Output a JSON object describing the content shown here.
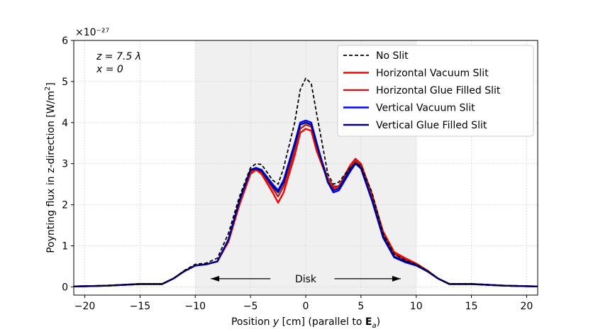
{
  "chart_data": {
    "type": "line",
    "title": "",
    "xlabel": "Position y [cm] (parallel to E_a)",
    "xlabel_parts": [
      "Position ",
      "y",
      " [cm] (parallel to ",
      "E",
      "a",
      ")"
    ],
    "ylabel": "Poynting flux in z-direction [W/m2]",
    "ylabel_parts": [
      "Poynting flux in z-direction [W/m",
      "2",
      "]"
    ],
    "xlim": [
      -21,
      21
    ],
    "ylim": [
      -0.2,
      6
    ],
    "xticks": [
      -20,
      -15,
      -10,
      -5,
      0,
      5,
      10,
      15,
      20
    ],
    "yticks": [
      0,
      1,
      2,
      3,
      4,
      5,
      6
    ],
    "ytick_scale": "×10⁻²⁷",
    "grid": true,
    "shaded_region": {
      "x0": -10,
      "x1": 10,
      "label": "Disk"
    },
    "annotations": [
      "z = 7.5 λ",
      "x = 0"
    ],
    "legend_position": "top-right",
    "series": [
      {
        "name": "No Slit",
        "color": "#000000",
        "style": "dashed",
        "x": [
          -21,
          -18,
          -15,
          -13,
          -12,
          -11,
          -10,
          -9,
          -8,
          -7,
          -6,
          -5,
          -4.5,
          -4,
          -3,
          -2.5,
          -2,
          -1,
          -0.5,
          0,
          0.5,
          1,
          2,
          2.5,
          3,
          4,
          4.5,
          5,
          6,
          7,
          8,
          9,
          10,
          11,
          12,
          13,
          15,
          18,
          21
        ],
        "y": [
          0.01,
          0.03,
          0.07,
          0.07,
          0.2,
          0.4,
          0.55,
          0.58,
          0.7,
          1.3,
          2.2,
          2.9,
          3.0,
          2.98,
          2.6,
          2.5,
          2.9,
          4.0,
          4.8,
          5.08,
          4.95,
          4.2,
          2.75,
          2.5,
          2.55,
          2.9,
          3.0,
          2.95,
          2.3,
          1.3,
          0.8,
          0.65,
          0.55,
          0.4,
          0.2,
          0.07,
          0.07,
          0.03,
          0.01
        ]
      },
      {
        "name": "Horizontal Vacuum Slit",
        "color": "#ff0000",
        "style": "solid",
        "x": [
          -21,
          -18,
          -15,
          -13,
          -12,
          -11,
          -10,
          -9,
          -8,
          -7,
          -6,
          -5,
          -4.5,
          -4,
          -3,
          -2.5,
          -2,
          -1,
          -0.5,
          0,
          0.5,
          1,
          2,
          2.5,
          3,
          4,
          4.5,
          5,
          6,
          7,
          8,
          9,
          10,
          11,
          12,
          13,
          15,
          18,
          21
        ],
        "y": [
          0.01,
          0.03,
          0.07,
          0.07,
          0.2,
          0.38,
          0.52,
          0.55,
          0.62,
          1.1,
          2.0,
          2.75,
          2.85,
          2.75,
          2.3,
          2.05,
          2.3,
          3.2,
          3.75,
          3.85,
          3.8,
          3.3,
          2.6,
          2.4,
          2.45,
          2.95,
          3.12,
          3.0,
          2.25,
          1.35,
          0.85,
          0.7,
          0.57,
          0.4,
          0.2,
          0.07,
          0.07,
          0.03,
          0.01
        ]
      },
      {
        "name": "Horizontal Glue Filled Slit",
        "color": "#b22222",
        "style": "solid",
        "x": [
          -21,
          -18,
          -15,
          -13,
          -12,
          -11,
          -10,
          -9,
          -8,
          -7,
          -6,
          -5,
          -4.5,
          -4,
          -3,
          -2.5,
          -2,
          -1,
          -0.5,
          0,
          0.5,
          1,
          2,
          2.5,
          3,
          4,
          4.5,
          5,
          6,
          7,
          8,
          9,
          10,
          11,
          12,
          13,
          15,
          18,
          21
        ],
        "y": [
          0.01,
          0.03,
          0.07,
          0.07,
          0.2,
          0.38,
          0.52,
          0.55,
          0.62,
          1.15,
          2.05,
          2.8,
          2.88,
          2.8,
          2.4,
          2.2,
          2.45,
          3.3,
          3.85,
          3.95,
          3.9,
          3.4,
          2.65,
          2.45,
          2.45,
          2.9,
          3.08,
          2.95,
          2.2,
          1.3,
          0.8,
          0.66,
          0.55,
          0.4,
          0.2,
          0.07,
          0.07,
          0.03,
          0.01
        ]
      },
      {
        "name": "Vertical Vacuum Slit",
        "color": "#0000ff",
        "style": "solid",
        "x": [
          -21,
          -18,
          -15,
          -13,
          -12,
          -11,
          -10,
          -9,
          -8,
          -7,
          -6,
          -5,
          -4.5,
          -4,
          -3,
          -2.5,
          -2,
          -1,
          -0.5,
          0,
          0.5,
          1,
          2,
          2.5,
          3,
          4,
          4.5,
          5,
          6,
          7,
          8,
          9,
          10,
          11,
          12,
          13,
          15,
          18,
          21
        ],
        "y": [
          0.01,
          0.03,
          0.07,
          0.07,
          0.2,
          0.38,
          0.52,
          0.55,
          0.62,
          1.15,
          2.1,
          2.85,
          2.9,
          2.85,
          2.5,
          2.35,
          2.6,
          3.5,
          4.0,
          4.05,
          4.0,
          3.5,
          2.55,
          2.3,
          2.35,
          2.8,
          3.0,
          2.88,
          2.1,
          1.2,
          0.72,
          0.6,
          0.52,
          0.38,
          0.2,
          0.07,
          0.07,
          0.03,
          0.01
        ]
      },
      {
        "name": "Vertical Glue Filled Slit",
        "color": "#00008b",
        "style": "solid",
        "x": [
          -21,
          -18,
          -15,
          -13,
          -12,
          -11,
          -10,
          -9,
          -8,
          -7,
          -6,
          -5,
          -4.5,
          -4,
          -3,
          -2.5,
          -2,
          -1,
          -0.5,
          0,
          0.5,
          1,
          2,
          2.5,
          3,
          4,
          4.5,
          5,
          6,
          7,
          8,
          9,
          10,
          11,
          12,
          13,
          15,
          18,
          21
        ],
        "y": [
          0.01,
          0.03,
          0.07,
          0.07,
          0.2,
          0.38,
          0.52,
          0.55,
          0.62,
          1.15,
          2.1,
          2.85,
          2.88,
          2.82,
          2.45,
          2.3,
          2.55,
          3.45,
          3.95,
          4.0,
          3.95,
          3.45,
          2.55,
          2.35,
          2.4,
          2.85,
          3.02,
          2.9,
          2.12,
          1.22,
          0.74,
          0.62,
          0.53,
          0.38,
          0.2,
          0.07,
          0.07,
          0.03,
          0.01
        ]
      }
    ]
  }
}
